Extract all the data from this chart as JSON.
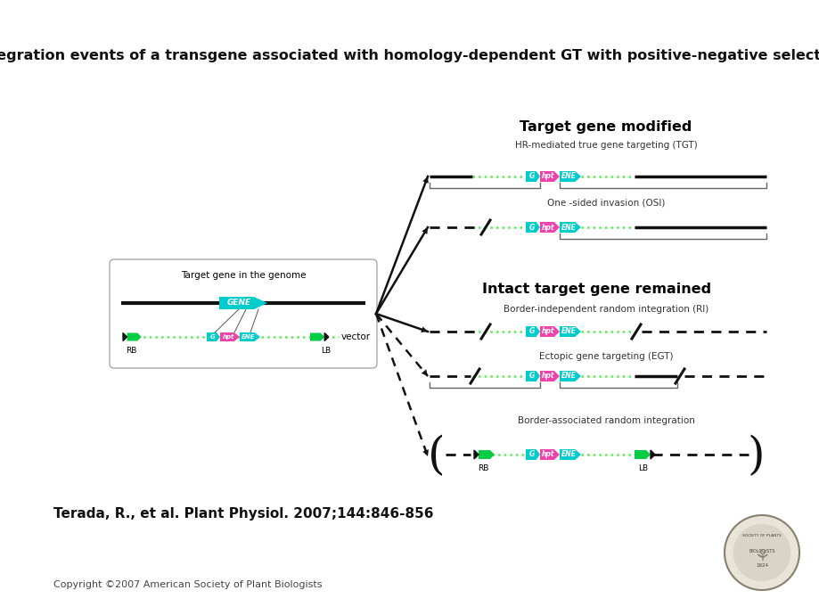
{
  "title": "Integration events of a transgene associated with homology-dependent GT with positive-negative selection",
  "citation": "Terada, R., et al. Plant Physiol. 2007;144:846-856",
  "copyright": "Copyright ©2007 American Society of Plant Biologists",
  "bg_color": "#ffffff",
  "colors": {
    "green_arrow": "#00cc44",
    "cyan_gene": "#00cccc",
    "pink_hpt": "#ee44aa",
    "dark_line": "#111111",
    "green_line": "#55ee55",
    "bracket": "#666666"
  }
}
